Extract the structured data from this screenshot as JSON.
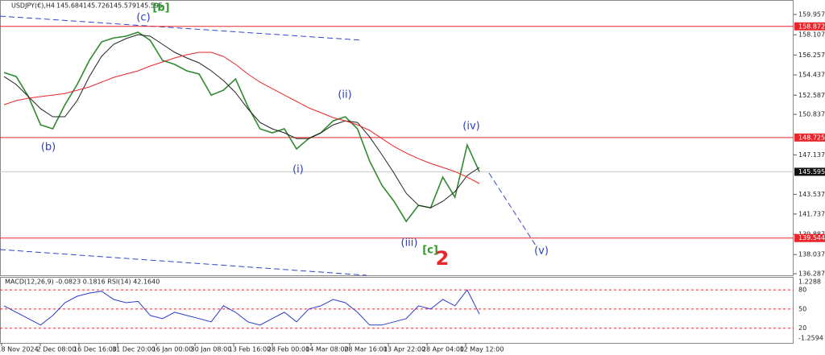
{
  "chart_data": {
    "type": "line",
    "symbol": "USDJPY(€),H4",
    "ohlc": [
      145.684,
      145.726,
      145.579,
      145.595
    ],
    "ylim": [
      136.07,
      161.28
    ],
    "yticks": [
      159.957,
      158.107,
      156.257,
      154.437,
      152.587,
      150.837,
      147.137,
      143.537,
      141.737,
      139.887,
      138.037,
      136.287
    ],
    "levels": [
      158.872,
      148.725,
      139.544
    ],
    "level_color": "#e8262b",
    "last_price": 145.595,
    "x_labels": [
      "18 Nov 2024",
      "2 Dec 08:00",
      "16 Dec 16:00",
      "31 Dec 20:00",
      "16 Jan 00:00",
      "30 Jan 08:00",
      "13 Feb 16:00",
      "28 Feb 00:00",
      "14 Mar 08:00",
      "28 Mar 16:00",
      "13 Apr 22:00",
      "28 Apr 04:00",
      "12 May 12:00"
    ],
    "series": [
      {
        "name": "price",
        "color": "#2f8a2f",
        "values": [
          154.66,
          154.29,
          152.46,
          149.88,
          149.52,
          151.72,
          153.56,
          155.77,
          157.46,
          157.82,
          157.97,
          158.34,
          157.6,
          155.77,
          155.4,
          154.81,
          154.52,
          152.6,
          153.04,
          154.07,
          151.57,
          149.52,
          149.15,
          149.52,
          147.68,
          148.63,
          149.15,
          150.25,
          150.62,
          149.52,
          146.57,
          144.37,
          142.9,
          141.06,
          142.53,
          142.31,
          145.1,
          143.27,
          148.04,
          145.595
        ]
      },
      {
        "name": "fast-ma",
        "color": "#222222",
        "values": [
          154.29,
          153.56,
          152.46,
          151.35,
          150.62,
          150.62,
          152.09,
          154.29,
          156.13,
          157.24,
          157.75,
          158.12,
          157.97,
          157.24,
          156.5,
          155.99,
          155.54,
          154.81,
          153.93,
          152.82,
          151.35,
          150.1,
          149.52,
          149.15,
          148.63,
          148.63,
          149.15,
          149.88,
          150.25,
          150.1,
          148.78,
          147.16,
          145.47,
          143.63,
          142.53,
          142.31,
          142.9,
          143.78,
          145.25,
          145.99
        ]
      },
      {
        "name": "slow-ma",
        "color": "#e8262b",
        "values": [
          151.72,
          152.09,
          152.31,
          152.46,
          152.6,
          152.75,
          153.04,
          153.34,
          153.78,
          154.22,
          154.52,
          154.81,
          155.25,
          155.62,
          155.99,
          156.28,
          156.5,
          156.5,
          156.13,
          155.4,
          154.52,
          153.78,
          153.19,
          152.6,
          152.02,
          151.43,
          150.99,
          150.54,
          150.25,
          149.88,
          149.37,
          148.63,
          147.9,
          147.31,
          146.79,
          146.35,
          145.99,
          145.62,
          145.1,
          144.52
        ]
      }
    ],
    "annotations": [
      {
        "text": "(c)",
        "color": "#2a3cc8"
      },
      {
        "text": "[b]",
        "color": "#2e9a2e"
      },
      {
        "text": "(b)",
        "color": "#2a3cc8"
      },
      {
        "text": "(i)",
        "color": "#2a3cc8"
      },
      {
        "text": "(ii)",
        "color": "#2a3cc8"
      },
      {
        "text": "(iii)",
        "color": "#2a3cc8"
      },
      {
        "text": "[c]",
        "color": "#2e9a2e"
      },
      {
        "text": "2",
        "color": "#e8262b"
      },
      {
        "text": "(iv)",
        "color": "#2a3cc8"
      },
      {
        "text": "(v)",
        "color": "#2a3cc8"
      }
    ],
    "indicator": {
      "title": "MACD(12,26,9) -0.0823 0.1816 RSI(14) 42.1640",
      "macd_ylim": [
        -1.2594,
        1.2288
      ],
      "ylim": [
        -3,
        99
      ],
      "yticks": [
        80,
        50,
        20
      ],
      "color": "#2a3cc8",
      "values": [
        55,
        45,
        35,
        25,
        40,
        60,
        70,
        75,
        78,
        65,
        60,
        62,
        40,
        35,
        45,
        40,
        35,
        30,
        55,
        45,
        30,
        25,
        35,
        45,
        30,
        50,
        55,
        65,
        60,
        45,
        25,
        25,
        30,
        35,
        55,
        50,
        65,
        55,
        80,
        42.164
      ]
    }
  }
}
